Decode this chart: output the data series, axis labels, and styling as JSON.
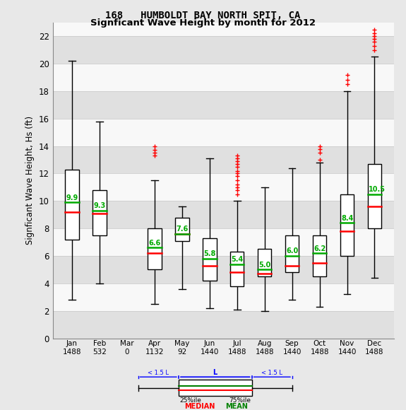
{
  "title_line1": "168   HUMBOLDT BAY NORTH SPIT, CA",
  "title_line2": "Signficant Wave Height by month for 2012",
  "ylabel": "Signficant Wave Height, Hs (ft)",
  "months": [
    "Jan",
    "Feb",
    "Mar",
    "Apr",
    "May",
    "Jun",
    "Jul",
    "Aug",
    "Sep",
    "Oct",
    "Nov",
    "Dec"
  ],
  "counts": [
    1488,
    532,
    0,
    1132,
    92,
    1440,
    1488,
    1488,
    1440,
    1488,
    1440,
    1488
  ],
  "ylim": [
    0,
    23
  ],
  "yticks": [
    0,
    2,
    4,
    6,
    8,
    10,
    12,
    14,
    16,
    18,
    20,
    22
  ],
  "boxes": [
    {
      "q1": 7.2,
      "median": 9.2,
      "mean": 9.9,
      "q3": 12.3,
      "whislo": 2.8,
      "whishi": 20.2,
      "fliers": []
    },
    {
      "q1": 7.5,
      "median": 9.1,
      "mean": 9.3,
      "q3": 10.8,
      "whislo": 4.0,
      "whishi": 15.8,
      "fliers": []
    },
    null,
    {
      "q1": 5.0,
      "median": 6.2,
      "mean": 6.6,
      "q3": 8.0,
      "whislo": 2.5,
      "whishi": 11.5,
      "fliers": [
        13.3,
        13.5,
        13.7,
        14.0
      ]
    },
    {
      "q1": 7.1,
      "median": 7.6,
      "mean": 7.6,
      "q3": 8.8,
      "whislo": 3.6,
      "whishi": 9.6,
      "fliers": []
    },
    {
      "q1": 4.2,
      "median": 5.3,
      "mean": 5.8,
      "q3": 7.3,
      "whislo": 2.2,
      "whishi": 13.1,
      "fliers": []
    },
    {
      "q1": 3.8,
      "median": 4.8,
      "mean": 5.4,
      "q3": 6.3,
      "whislo": 2.1,
      "whishi": 10.0,
      "fliers": [
        10.5,
        10.8,
        11.0,
        11.2,
        11.5,
        11.8,
        12.0,
        12.2,
        12.5,
        12.7,
        12.9,
        13.1,
        13.3
      ]
    },
    {
      "q1": 4.5,
      "median": 4.7,
      "mean": 5.0,
      "q3": 6.5,
      "whislo": 2.0,
      "whishi": 11.0,
      "fliers": []
    },
    {
      "q1": 4.8,
      "median": 5.3,
      "mean": 6.0,
      "q3": 7.5,
      "whislo": 2.8,
      "whishi": 12.4,
      "fliers": []
    },
    {
      "q1": 4.5,
      "median": 5.5,
      "mean": 6.2,
      "q3": 7.5,
      "whislo": 2.3,
      "whishi": 12.8,
      "fliers": [
        13.0,
        13.5,
        13.8,
        14.0
      ]
    },
    {
      "q1": 6.0,
      "median": 7.8,
      "mean": 8.4,
      "q3": 10.5,
      "whislo": 3.2,
      "whishi": 18.0,
      "fliers": [
        18.5,
        18.8,
        19.2
      ]
    },
    {
      "q1": 8.0,
      "median": 9.6,
      "mean": 10.5,
      "q3": 12.7,
      "whislo": 4.4,
      "whishi": 20.5,
      "fliers": [
        21.0,
        21.3,
        21.6,
        21.8,
        22.0,
        22.2,
        22.5
      ]
    }
  ],
  "box_color": "#ffffff",
  "box_edge_color": "#000000",
  "median_color": "#ff0000",
  "mean_color": "#00aa00",
  "whisker_color": "#000000",
  "flier_color": "#ff0000",
  "bg_color": "#e8e8e8",
  "plot_bg_color": "#ffffff",
  "grid_color": "#cccccc",
  "text_color": "#000000",
  "stripe_colors": [
    "#e0e0e0",
    "#f8f8f8"
  ]
}
